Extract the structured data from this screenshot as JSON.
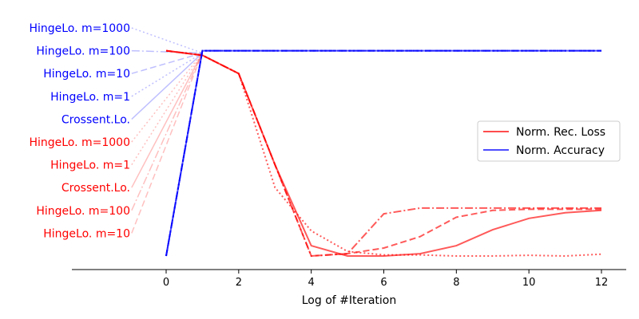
{
  "chart_data": {
    "type": "line",
    "xlabel": "Log of #Iteration",
    "xticks": [
      0,
      2,
      4,
      6,
      8,
      10,
      12
    ],
    "xlim": [
      -2.5,
      12.7
    ],
    "ylim": [
      -0.06,
      1.0
    ],
    "grid": false,
    "legend": {
      "placement": "center-right",
      "entries": [
        {
          "label": "Norm. Rec. Loss",
          "color": "#ff0000"
        },
        {
          "label": "Norm. Accuracy",
          "color": "#0000ff"
        }
      ]
    },
    "method_labels": [
      {
        "text": "HingeLo. m=1000",
        "color": "#0000ff",
        "y": 1.0,
        "style": "dotted"
      },
      {
        "text": "HingeLo. m=100",
        "color": "#0000ff",
        "y": 0.9,
        "style": "dashdot"
      },
      {
        "text": "HingeLo. m=10",
        "color": "#0000ff",
        "y": 0.8,
        "style": "dashed"
      },
      {
        "text": "HingeLo. m=1",
        "color": "#0000ff",
        "y": 0.7,
        "style": "dotted"
      },
      {
        "text": "Crossent.Lo.",
        "color": "#0000ff",
        "y": 0.6,
        "style": "solid"
      },
      {
        "text": "HingeLo. m=1000",
        "color": "#ff0000",
        "y": 0.5,
        "style": "dotted"
      },
      {
        "text": "HingeLo. m=1",
        "color": "#ff0000",
        "y": 0.4,
        "style": "dotted"
      },
      {
        "text": "Crossent.Lo.",
        "color": "#ff0000",
        "y": 0.3,
        "style": "solid"
      },
      {
        "text": "HingeLo. m=100",
        "color": "#ff0000",
        "y": 0.2,
        "style": "dashdot"
      },
      {
        "text": "HingeLo. m=10",
        "color": "#ff0000",
        "y": 0.1,
        "style": "dashed"
      }
    ],
    "label_anchor": {
      "x": -0.95
    },
    "target_point": {
      "x": 1,
      "y": 0.89
    },
    "accuracy_series": [
      {
        "style": "solid",
        "x": [
          0,
          1,
          2,
          3,
          4,
          5,
          6,
          7,
          8,
          9,
          10,
          11,
          12
        ],
        "values": [
          0.0,
          0.9,
          0.9,
          0.9,
          0.9,
          0.9,
          0.9,
          0.9,
          0.9,
          0.9,
          0.9,
          0.9,
          0.9
        ]
      },
      {
        "style": "dashed",
        "x": [
          0,
          1,
          2,
          3,
          4,
          5,
          6,
          7,
          8,
          9,
          10,
          11,
          12
        ],
        "values": [
          0.0,
          0.9,
          0.9,
          0.9,
          0.9,
          0.9,
          0.9,
          0.9,
          0.9,
          0.9,
          0.9,
          0.9,
          0.9
        ]
      },
      {
        "style": "dashdot",
        "x": [
          0,
          1,
          2,
          3,
          4,
          5,
          6,
          7,
          8,
          9,
          10,
          11,
          12
        ],
        "values": [
          0.0,
          0.9,
          0.9,
          0.9,
          0.9,
          0.9,
          0.9,
          0.9,
          0.9,
          0.9,
          0.9,
          0.9,
          0.9
        ]
      },
      {
        "style": "dotted",
        "x": [
          0,
          1,
          2,
          3,
          4,
          5,
          6,
          7,
          8,
          9,
          10,
          11,
          12
        ],
        "values": [
          0.0,
          0.9,
          0.9,
          0.9,
          0.9,
          0.9,
          0.9,
          0.9,
          0.9,
          0.9,
          0.9,
          0.9,
          0.9
        ]
      }
    ],
    "loss_series": [
      {
        "style": "solid",
        "x": [
          0,
          1,
          2,
          3,
          4,
          5,
          6,
          7,
          8,
          9,
          10,
          11,
          12
        ],
        "values": [
          0.9,
          0.88,
          0.8,
          0.4,
          0.045,
          0.0,
          0.0,
          0.01,
          0.045,
          0.115,
          0.165,
          0.19,
          0.2
        ]
      },
      {
        "style": "dashed",
        "x": [
          0,
          1,
          2,
          3,
          4,
          5,
          6,
          7,
          8,
          9,
          10,
          11,
          12
        ],
        "values": [
          0.9,
          0.88,
          0.8,
          0.4,
          0.0,
          0.01,
          0.035,
          0.085,
          0.17,
          0.2,
          0.205,
          0.205,
          0.205
        ]
      },
      {
        "style": "dashdot",
        "x": [
          0,
          1,
          2,
          3,
          4,
          5,
          6,
          7,
          8,
          9,
          10,
          11,
          12
        ],
        "values": [
          0.9,
          0.88,
          0.8,
          0.4,
          0.0,
          0.01,
          0.185,
          0.21,
          0.21,
          0.21,
          0.21,
          0.21,
          0.21
        ]
      },
      {
        "style": "dotted",
        "x": [
          0,
          1,
          2,
          3,
          4,
          5,
          6,
          7,
          8,
          9,
          10,
          11,
          12
        ],
        "values": [
          0.9,
          0.88,
          0.8,
          0.3,
          0.11,
          0.02,
          0.005,
          0.005,
          0.0,
          0.0,
          0.003,
          0.0,
          0.008
        ]
      }
    ]
  }
}
